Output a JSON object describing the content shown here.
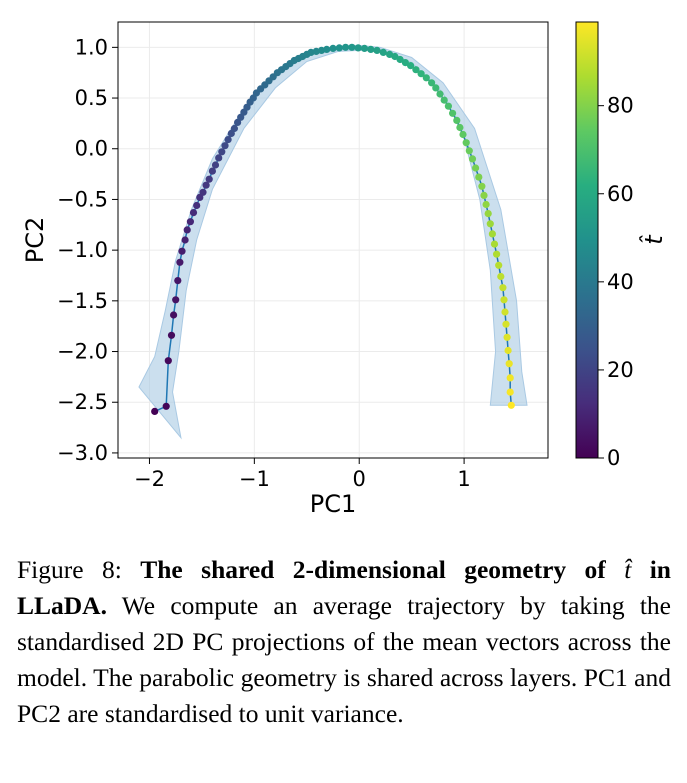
{
  "chart_data": {
    "type": "scatter",
    "xlabel": "PC1",
    "ylabel": "PC2",
    "colorbar_label": "t̂",
    "xlim": [
      -2.3,
      1.8
    ],
    "ylim": [
      -3.05,
      1.25
    ],
    "xticks": [
      -2,
      -1,
      0,
      1
    ],
    "yticks": [
      -3.0,
      -2.5,
      -2.0,
      -1.5,
      -1.0,
      -0.5,
      0.0,
      0.5,
      1.0
    ],
    "colorbar_ticks": [
      0,
      20,
      40,
      60,
      80
    ],
    "colorbar_range": [
      0,
      99
    ],
    "grid": true,
    "colormap": "viridis",
    "line_color": "#1f77b4",
    "band_color": "#a9c9e3",
    "n_points": 100,
    "series": [
      {
        "x": [
          -1.95,
          -1.84,
          -1.82,
          -1.79,
          -1.77,
          -1.75,
          -1.73,
          -1.71,
          -1.69,
          -1.66,
          -1.64,
          -1.61,
          -1.58,
          -1.55,
          -1.52,
          -1.49,
          -1.46,
          -1.43,
          -1.4,
          -1.37,
          -1.34,
          -1.31,
          -1.28,
          -1.25,
          -1.22,
          -1.19,
          -1.16,
          -1.13,
          -1.1,
          -1.07,
          -1.04,
          -1.01,
          -0.98,
          -0.94,
          -0.9,
          -0.86,
          -0.82,
          -0.78,
          -0.74,
          -0.7,
          -0.66,
          -0.62,
          -0.58,
          -0.54,
          -0.5,
          -0.46,
          -0.41,
          -0.36,
          -0.31,
          -0.25,
          -0.19,
          -0.13,
          -0.07,
          -0.01,
          0.05,
          0.11,
          0.17,
          0.23,
          0.29,
          0.34,
          0.39,
          0.44,
          0.49,
          0.54,
          0.59,
          0.64,
          0.69,
          0.73,
          0.77,
          0.81,
          0.85,
          0.89,
          0.93,
          0.96,
          0.99,
          1.02,
          1.05,
          1.08,
          1.11,
          1.14,
          1.17,
          1.19,
          1.21,
          1.23,
          1.25,
          1.27,
          1.29,
          1.31,
          1.33,
          1.35,
          1.37,
          1.38,
          1.39,
          1.4,
          1.41,
          1.42,
          1.43,
          1.44,
          1.44,
          1.45
        ],
        "y": [
          -2.59,
          -2.54,
          -2.09,
          -1.84,
          -1.64,
          -1.49,
          -1.3,
          -1.12,
          -1.01,
          -0.9,
          -0.8,
          -0.72,
          -0.63,
          -0.56,
          -0.48,
          -0.43,
          -0.36,
          -0.3,
          -0.22,
          -0.16,
          -0.09,
          -0.03,
          0.03,
          0.09,
          0.15,
          0.2,
          0.26,
          0.31,
          0.36,
          0.41,
          0.46,
          0.5,
          0.55,
          0.59,
          0.63,
          0.67,
          0.71,
          0.75,
          0.78,
          0.81,
          0.84,
          0.87,
          0.89,
          0.91,
          0.93,
          0.95,
          0.96,
          0.97,
          0.98,
          0.99,
          0.995,
          1.0,
          1.0,
          0.995,
          0.99,
          0.98,
          0.97,
          0.95,
          0.93,
          0.91,
          0.88,
          0.85,
          0.82,
          0.78,
          0.74,
          0.7,
          0.65,
          0.6,
          0.54,
          0.48,
          0.42,
          0.35,
          0.28,
          0.21,
          0.14,
          0.06,
          -0.02,
          -0.1,
          -0.19,
          -0.28,
          -0.37,
          -0.46,
          -0.55,
          -0.64,
          -0.74,
          -0.84,
          -0.94,
          -1.04,
          -1.15,
          -1.26,
          -1.37,
          -1.49,
          -1.61,
          -1.73,
          -1.86,
          -1.99,
          -2.12,
          -2.26,
          -2.4,
          -2.53
        ]
      }
    ],
    "band_upper": {
      "x": [
        -2.1,
        -1.95,
        -1.85,
        -1.75,
        -1.6,
        -1.4,
        -1.1,
        -0.8,
        -0.5,
        -0.2,
        0.0,
        0.2,
        0.5,
        0.8,
        1.1,
        1.35,
        1.5,
        1.55,
        1.6
      ],
      "y": [
        -2.35,
        -2.05,
        -1.6,
        -1.1,
        -0.6,
        -0.1,
        0.4,
        0.75,
        0.93,
        1.01,
        1.02,
        1.0,
        0.9,
        0.65,
        0.2,
        -0.6,
        -1.5,
        -2.2,
        -2.53
      ]
    },
    "band_lower": {
      "x": [
        1.25,
        1.3,
        1.25,
        1.15,
        1.0,
        0.8,
        0.5,
        0.2,
        0.0,
        -0.2,
        -0.5,
        -0.8,
        -1.1,
        -1.4,
        -1.55,
        -1.65,
        -1.72,
        -1.78,
        -1.7
      ],
      "y": [
        -2.53,
        -2.0,
        -1.2,
        -0.5,
        0.1,
        0.55,
        0.85,
        0.98,
        0.97,
        0.96,
        0.86,
        0.6,
        0.2,
        -0.4,
        -0.9,
        -1.4,
        -2.0,
        -2.4,
        -2.85
      ]
    }
  },
  "caption": {
    "prefix": "Figure 8: ",
    "bold_a": "The shared 2-dimensional geometry of ",
    "bold_symbol": "t̂",
    "bold_b": " in LLaDA.",
    "text": " We compute an average trajectory by taking the standardised 2D PC projections of the mean vectors across the model.  The parabolic geometry is shared across layers.  PC1 and PC2 are standardised to unit variance."
  }
}
